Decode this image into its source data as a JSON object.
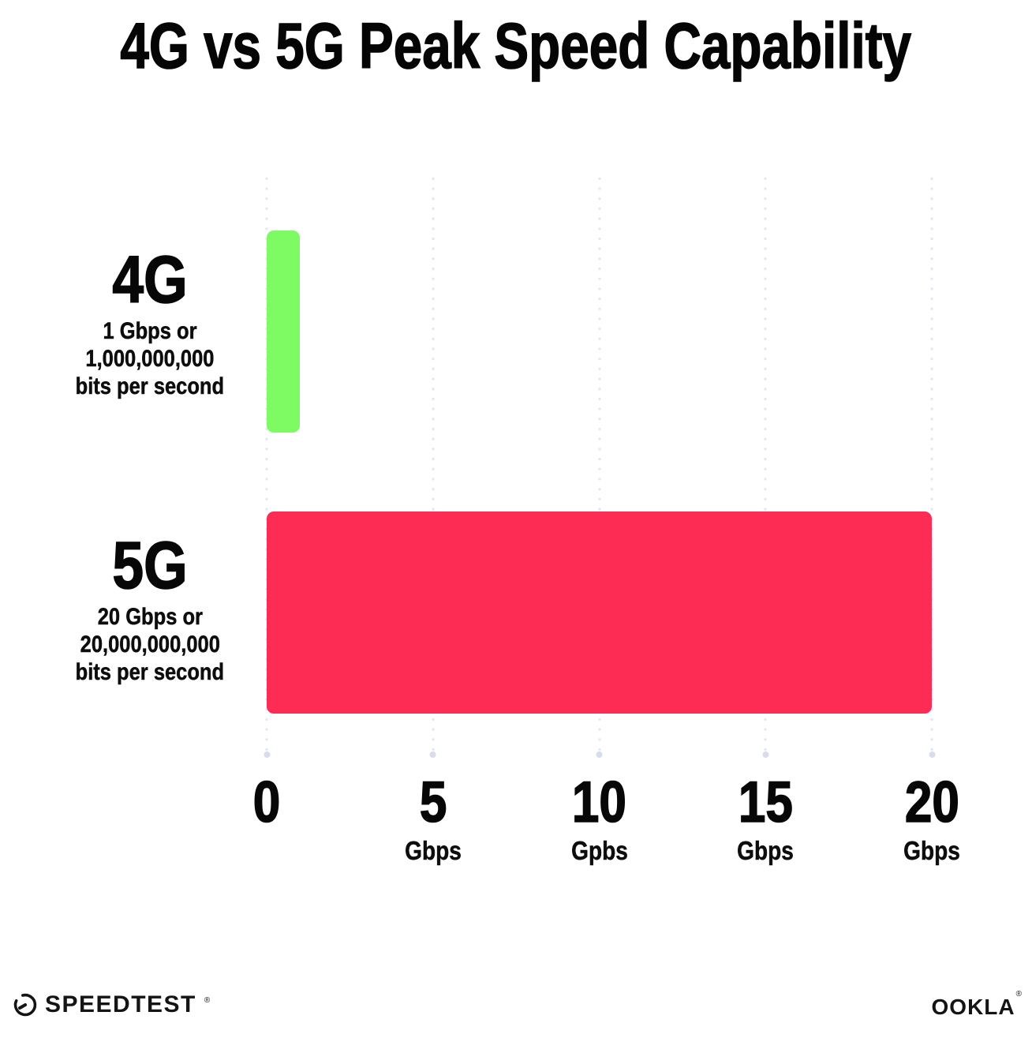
{
  "title": "4G vs 5G Peak Speed Capability",
  "chart_data": {
    "type": "bar",
    "orientation": "horizontal",
    "title": "4G vs 5G Peak Speed Capability",
    "categories": [
      "4G",
      "5G"
    ],
    "values": [
      1,
      20
    ],
    "value_unit": "Gbps",
    "bar_colors": [
      "#7efb63",
      "#fc2c55"
    ],
    "category_descriptions": [
      "1 Gbps or 1,000,000,000 bits per second",
      "20 Gbps or 20,000,000,000 bits per second"
    ],
    "xlim": [
      0,
      20
    ],
    "x_ticks": [
      {
        "value": 0,
        "label": "0",
        "unit": ""
      },
      {
        "value": 5,
        "label": "5",
        "unit": "Gbps"
      },
      {
        "value": 10,
        "label": "10",
        "unit": "Gpbs"
      },
      {
        "value": 15,
        "label": "15",
        "unit": "Gbps"
      },
      {
        "value": 20,
        "label": "20",
        "unit": "Gbps"
      }
    ],
    "grid": "vertical-dotted",
    "legend": "none"
  },
  "rows": [
    {
      "label": "4G",
      "desc_lines": [
        "1 Gbps or",
        "1,000,000,000",
        "bits per second"
      ]
    },
    {
      "label": "5G",
      "desc_lines": [
        "20 Gbps or",
        "20,000,000,000",
        "bits per second"
      ]
    }
  ],
  "footer": {
    "speedtest_label": "SPEEDTEST",
    "speedtest_mark": "®",
    "ookla_label": "OOKLA",
    "ookla_mark": "®"
  }
}
